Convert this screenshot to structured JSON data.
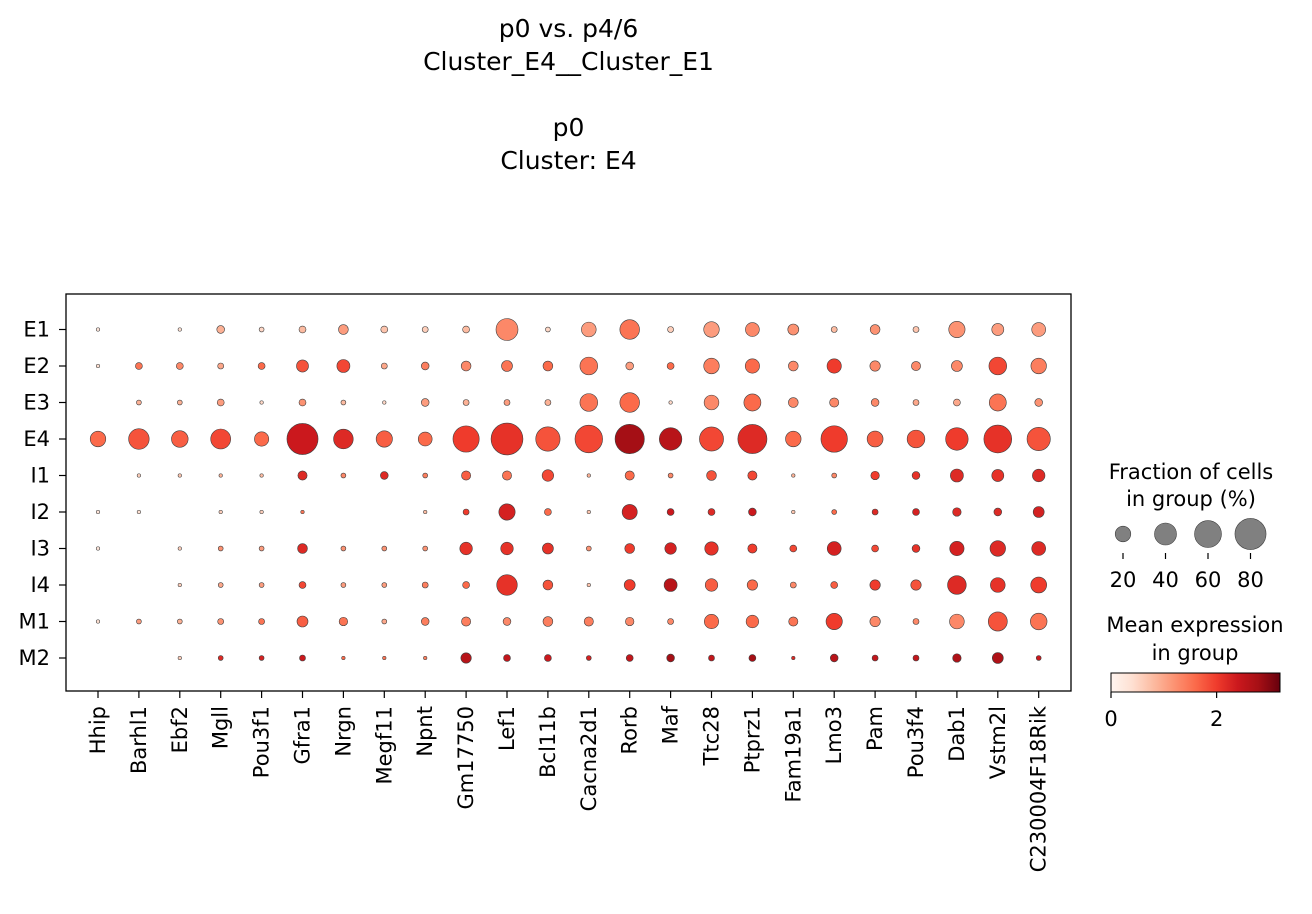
{
  "chart_data": {
    "type": "dotplot",
    "title_lines": [
      "p0 vs. p4/6",
      "Cluster_E4__Cluster_E1",
      "",
      "p0",
      "Cluster: E4"
    ],
    "genes": [
      "Hhip",
      "Barhl1",
      "Ebf2",
      "Mgll",
      "Pou3f1",
      "Gfra1",
      "Nrgn",
      "Megf11",
      "Npnt",
      "Gm17750",
      "Lef1",
      "Bcl11b",
      "Cacna2d1",
      "Rorb",
      "Maf",
      "Ttc28",
      "Ptprz1",
      "Fam19a1",
      "Lmo3",
      "Pam",
      "Pou3f4",
      "Dab1",
      "Vstm2l",
      "C230004F18Rik"
    ],
    "groups": [
      "E1",
      "E2",
      "E3",
      "E4",
      "I1",
      "I2",
      "I3",
      "I4",
      "M1",
      "M2"
    ],
    "fraction_pct": [
      [
        1,
        0,
        1,
        5,
        2,
        4,
        8,
        4,
        3,
        4,
        40,
        2,
        18,
        32,
        3,
        20,
        16,
        10,
        3,
        8,
        3,
        22,
        12,
        16
      ],
      [
        1,
        4,
        4,
        3,
        4,
        12,
        14,
        3,
        5,
        8,
        10,
        8,
        26,
        5,
        4,
        20,
        17,
        8,
        17,
        9,
        7,
        10,
        26,
        20
      ],
      [
        0,
        2,
        2,
        4,
        1,
        4,
        2,
        1,
        5,
        3,
        3,
        3,
        26,
        32,
        1,
        18,
        24,
        8,
        7,
        5,
        3,
        4,
        24,
        5
      ],
      [
        20,
        35,
        23,
        33,
        17,
        80,
        32,
        22,
        16,
        57,
        84,
        49,
        63,
        71,
        42,
        48,
        70,
        20,
        58,
        21,
        26,
        42,
        64,
        45
      ],
      [
        0,
        1,
        1,
        1,
        1,
        7,
        2,
        5,
        2,
        7,
        7,
        11,
        1,
        7,
        2,
        8,
        7,
        1,
        2,
        6,
        5,
        14,
        12,
        13
      ],
      [
        1,
        1,
        0,
        1,
        1,
        1,
        0,
        0,
        1,
        3,
        22,
        4,
        1,
        19,
        4,
        4,
        5,
        1,
        2,
        3,
        4,
        6,
        5,
        10
      ],
      [
        1,
        0,
        1,
        2,
        2,
        8,
        2,
        2,
        2,
        13,
        13,
        10,
        2,
        8,
        11,
        15,
        7,
        4,
        16,
        4,
        5,
        17,
        20,
        16
      ],
      [
        0,
        0,
        1,
        2,
        2,
        4,
        2,
        2,
        3,
        4,
        35,
        8,
        1,
        10,
        14,
        13,
        9,
        3,
        4,
        9,
        9,
        29,
        18,
        21
      ],
      [
        1,
        2,
        2,
        3,
        3,
        10,
        6,
        2,
        5,
        7,
        5,
        8,
        7,
        6,
        3,
        17,
        13,
        7,
        22,
        9,
        3,
        18,
        30,
        23
      ],
      [
        0,
        0,
        1,
        2,
        2,
        3,
        1,
        1,
        1,
        9,
        4,
        4,
        2,
        4,
        5,
        3,
        4,
        1,
        5,
        3,
        3,
        6,
        10,
        2
      ]
    ],
    "mean_expression": [
      [
        0.3,
        0,
        0.4,
        0.9,
        0.5,
        0.8,
        1.1,
        0.7,
        0.6,
        0.8,
        1.3,
        0.5,
        1.1,
        1.5,
        0.6,
        1.1,
        1.3,
        1.2,
        0.8,
        1.2,
        0.7,
        1.2,
        1.1,
        1.1
      ],
      [
        0.4,
        1.5,
        1.3,
        1.0,
        1.6,
        1.8,
        1.9,
        1.0,
        1.4,
        1.3,
        1.5,
        1.6,
        1.5,
        1.1,
        1.6,
        1.4,
        1.6,
        1.3,
        2.0,
        1.3,
        1.3,
        1.3,
        1.9,
        1.4
      ],
      [
        0.2,
        0.9,
        0.9,
        1.1,
        0.5,
        1.2,
        0.8,
        0.5,
        1.1,
        0.9,
        1.1,
        0.9,
        1.5,
        1.6,
        0.5,
        1.3,
        1.6,
        1.3,
        1.3,
        1.3,
        1.0,
        1.0,
        1.5,
        1.2
      ],
      [
        1.6,
        1.8,
        1.7,
        1.9,
        1.6,
        2.4,
        2.2,
        1.7,
        1.6,
        2.0,
        2.1,
        1.8,
        1.9,
        2.8,
        2.6,
        1.9,
        2.2,
        1.6,
        2.0,
        1.7,
        1.8,
        2.0,
        2.1,
        1.8
      ],
      [
        0.3,
        0.6,
        0.7,
        0.9,
        0.8,
        2.2,
        1.3,
        2.2,
        1.4,
        1.7,
        1.5,
        1.9,
        0.9,
        1.6,
        1.3,
        1.8,
        1.9,
        0.9,
        1.3,
        2.0,
        2.1,
        2.2,
        2.1,
        2.2
      ],
      [
        0.3,
        0.4,
        0.3,
        0.6,
        0.6,
        1.5,
        0.4,
        0.4,
        0.8,
        2.0,
        2.3,
        1.6,
        0.7,
        2.3,
        2.4,
        2.2,
        2.4,
        0.7,
        1.6,
        2.2,
        2.3,
        2.2,
        2.2,
        2.3
      ],
      [
        0.3,
        0.3,
        0.6,
        1.2,
        1.1,
        2.2,
        1.2,
        1.2,
        1.2,
        2.1,
        2.1,
        2.1,
        1.2,
        2.0,
        2.3,
        2.1,
        2.0,
        1.9,
        2.3,
        1.9,
        2.1,
        2.3,
        2.2,
        2.2
      ],
      [
        0.2,
        0.3,
        0.6,
        1.0,
        1.1,
        1.9,
        1.1,
        1.1,
        1.4,
        1.6,
        2.1,
        1.8,
        0.7,
        2.0,
        2.6,
        1.7,
        1.6,
        1.3,
        1.7,
        2.0,
        1.8,
        2.2,
        2.1,
        2.0
      ],
      [
        0.4,
        1.1,
        0.9,
        1.2,
        1.5,
        1.7,
        1.5,
        1.0,
        1.4,
        1.4,
        1.3,
        1.4,
        1.4,
        1.3,
        1.3,
        1.6,
        1.6,
        1.5,
        2.0,
        1.3,
        1.3,
        1.3,
        1.8,
        1.5
      ],
      [
        0.2,
        0.3,
        0.6,
        2.2,
        2.3,
        2.4,
        1.6,
        1.5,
        1.4,
        2.6,
        2.5,
        2.4,
        2.3,
        2.5,
        2.8,
        2.5,
        2.8,
        2.2,
        2.6,
        2.5,
        2.5,
        2.7,
        2.7,
        2.4
      ]
    ],
    "size_legend": {
      "title_lines": [
        "Fraction of cells",
        "in group (%)"
      ],
      "values": [
        20,
        40,
        60,
        80
      ],
      "labels": [
        "20",
        "40",
        "60",
        "80"
      ]
    },
    "color_legend": {
      "title_lines": [
        "Mean expression",
        "in group"
      ],
      "range": [
        0,
        3.2
      ],
      "colormap": "Reds",
      "ticks": [
        0,
        2
      ],
      "tick_labels": [
        "0",
        "2"
      ]
    },
    "colors": {
      "reds": [
        "#fff5f0",
        "#fee0d2",
        "#fcbba1",
        "#fc9272",
        "#fb6a4a",
        "#ef3b2c",
        "#cb181d",
        "#a50f15",
        "#67000d"
      ],
      "edge": "#404040"
    }
  }
}
